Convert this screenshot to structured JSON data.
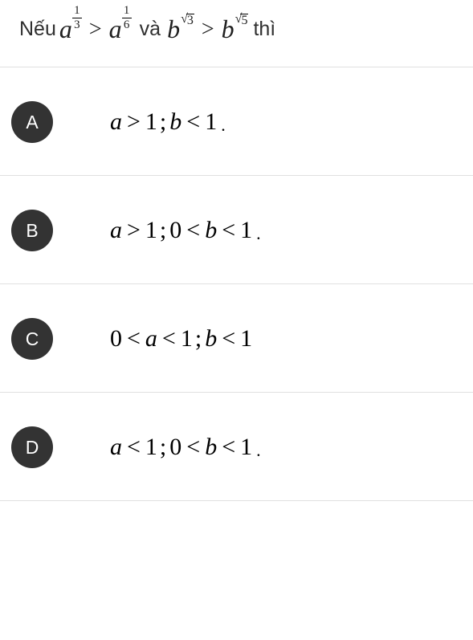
{
  "question": {
    "prefix": "Nếu",
    "mid": "và",
    "suffix": "thì",
    "expr1": {
      "base1": "a",
      "sup1_num": "1",
      "sup1_den": "3",
      "op": ">",
      "base2": "a",
      "sup2_num": "1",
      "sup2_den": "6"
    },
    "expr2": {
      "base1": "b",
      "sup1_rad": "3",
      "op": ">",
      "base2": "b",
      "sup2_rad": "5"
    }
  },
  "options": [
    {
      "label": "A",
      "parts": [
        "a",
        ">",
        "1",
        ";",
        "b",
        "<",
        "1"
      ],
      "trailing_dot": true
    },
    {
      "label": "B",
      "parts": [
        "a",
        ">",
        "1",
        ";",
        "0",
        "<",
        "b",
        "<",
        "1"
      ],
      "trailing_dot": true
    },
    {
      "label": "C",
      "parts": [
        "0",
        "<",
        "a",
        "<",
        "1",
        ";",
        "b",
        "<",
        "1"
      ],
      "trailing_dot": false
    },
    {
      "label": "D",
      "parts": [
        "a",
        "<",
        "1",
        ";",
        "0",
        "<",
        "b",
        "<",
        "1"
      ],
      "trailing_dot": true
    }
  ],
  "styling": {
    "background": "#ffffff",
    "border_color": "#e0e0e0",
    "badge_bg": "#333333",
    "badge_fg": "#ffffff",
    "text_color": "#202020",
    "question_fontsize": 25,
    "option_fontsize": 30,
    "badge_size": 52,
    "serif_font": "Times New Roman",
    "sans_font": "Arial"
  }
}
